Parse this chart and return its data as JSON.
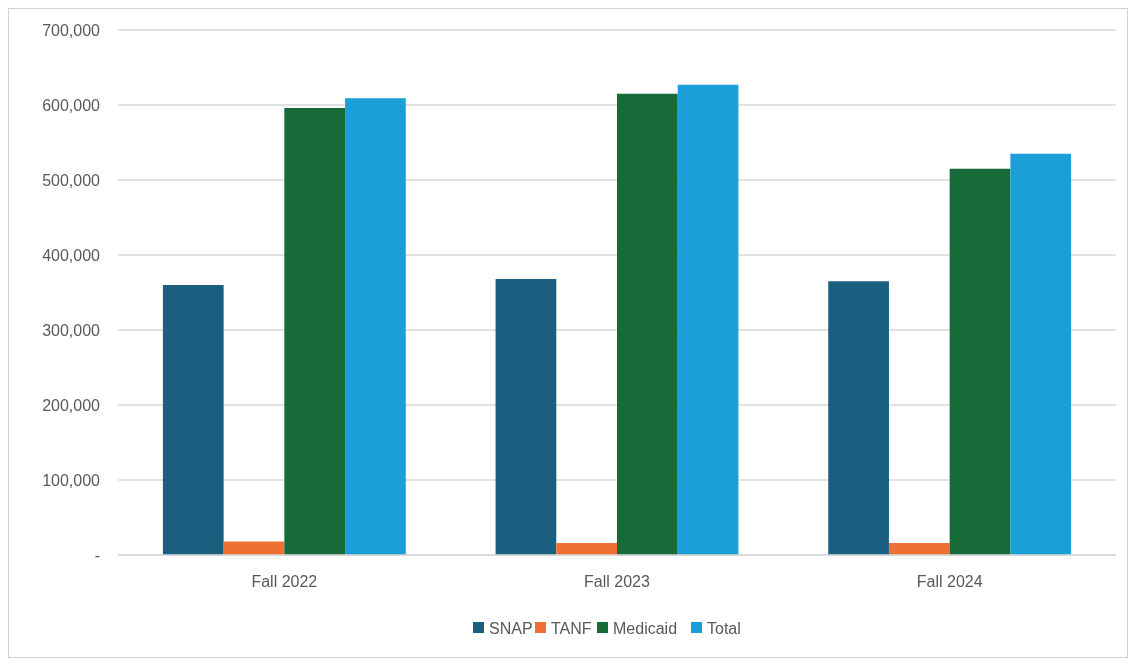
{
  "chart_data": {
    "type": "bar",
    "categories": [
      "Fall 2022",
      "Fall 2023",
      "Fall 2024"
    ],
    "series": [
      {
        "name": "SNAP",
        "color": "#1a5f80",
        "values": [
          360000,
          368000,
          365000
        ]
      },
      {
        "name": "TANF",
        "color": "#f07033",
        "values": [
          18000,
          16000,
          16000
        ]
      },
      {
        "name": "Medicaid",
        "color": "#176b38",
        "values": [
          596000,
          615000,
          515000
        ]
      },
      {
        "name": "Total",
        "color": "#1a9fd8",
        "values": [
          609000,
          627000,
          535000
        ]
      }
    ],
    "ylim": [
      0,
      700000
    ],
    "yticks": [
      {
        "value": 0,
        "label": "-"
      },
      {
        "value": 100000,
        "label": "100,000"
      },
      {
        "value": 200000,
        "label": "200,000"
      },
      {
        "value": 300000,
        "label": "300,000"
      },
      {
        "value": 400000,
        "label": "400,000"
      },
      {
        "value": 500000,
        "label": "500,000"
      },
      {
        "value": 600000,
        "label": "600,000"
      },
      {
        "value": 700000,
        "label": "700,000"
      }
    ],
    "grid": "y",
    "legend": "bottom"
  }
}
